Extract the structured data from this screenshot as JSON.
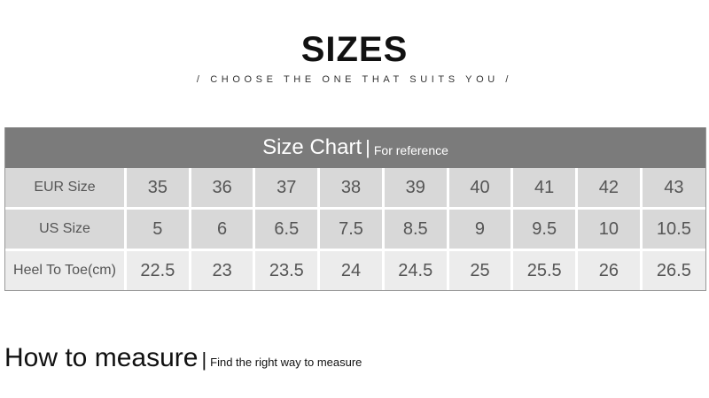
{
  "header": {
    "title": "SIZES",
    "subtitle": "/  CHOOSE THE ONE THAT SUITS YOU  /"
  },
  "chart": {
    "title": "Size Chart",
    "separator": "|",
    "note": "For reference",
    "rows": [
      {
        "label": "EUR Size",
        "values": [
          "35",
          "36",
          "37",
          "38",
          "39",
          "40",
          "41",
          "42",
          "43"
        ]
      },
      {
        "label": "US Size",
        "values": [
          "5",
          "6",
          "6.5",
          "7.5",
          "8.5",
          "9",
          "9.5",
          "10",
          "10.5"
        ]
      },
      {
        "label": "Heel To Toe(cm)",
        "values": [
          "22.5",
          "23",
          "23.5",
          "24",
          "24.5",
          "25",
          "25.5",
          "26",
          "26.5"
        ]
      }
    ]
  },
  "measure": {
    "title": "How to measure",
    "separator": "|",
    "note": "Find the right way to measure"
  },
  "colors": {
    "header_bg": "#7b7b7b",
    "cell_bg": "#d8d8d8",
    "cell_light_bg": "#ececec"
  }
}
